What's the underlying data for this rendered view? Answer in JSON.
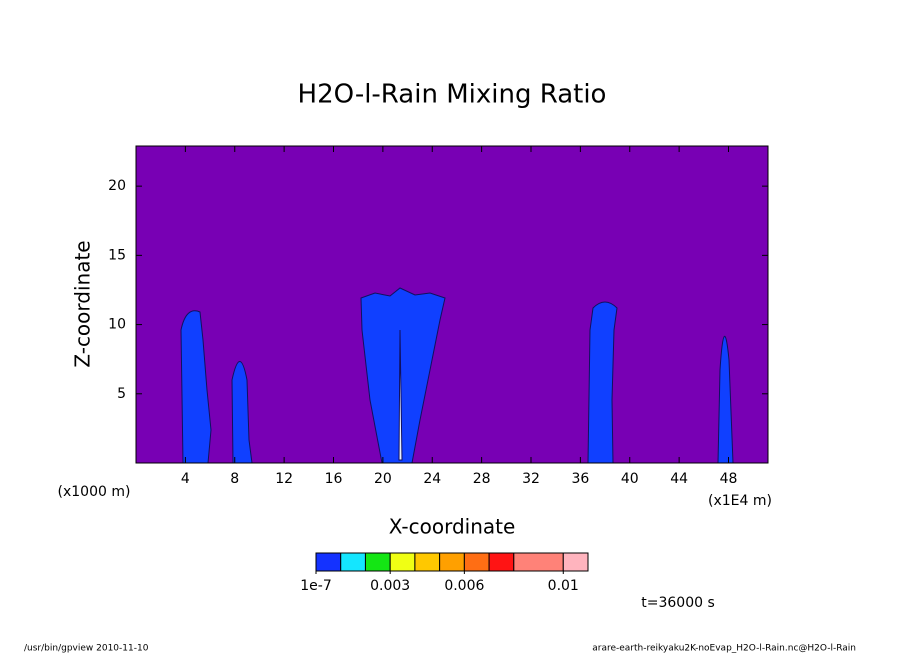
{
  "chart_data": {
    "type": "contour",
    "title": "H2O-l-Rain Mixing Ratio",
    "xlabel": "X-coordinate",
    "ylabel": "Z-coordinate",
    "y_unit": "(x1000 m)",
    "x_unit": "(x1E4 m)",
    "time_label": "t=36000 s",
    "xlim": [
      0,
      51.2
    ],
    "xticks": [
      4,
      8,
      12,
      16,
      20,
      24,
      28,
      32,
      36,
      40,
      44,
      48
    ],
    "ylim": [
      0,
      22.9
    ],
    "yticks": [
      5,
      10,
      15,
      20
    ],
    "background_color": "#7800b4",
    "colorbar": {
      "levels": [
        1e-07,
        0.001,
        0.002,
        0.003,
        0.004,
        0.005,
        0.006,
        0.007,
        0.008,
        0.01,
        0.011
      ],
      "colors": [
        "#1432ff",
        "#14e6ff",
        "#14e614",
        "#f0ff14",
        "#ffc800",
        "#ffa000",
        "#ff6e14",
        "#ff1414",
        "#ff8278",
        "#ffb4be"
      ],
      "ticks": [
        {
          "value": 1e-07,
          "label": "1e-7"
        },
        {
          "value": 0.003,
          "label": "0.003"
        },
        {
          "value": 0.006,
          "label": "0.006"
        },
        {
          "value": 0.01,
          "label": "0.01"
        }
      ]
    },
    "footer_left": "/usr/bin/gpview   2010-11-10",
    "footer_right": "arare-earth-reikyaku2K-noEvap_H2O-l-Rain.nc@H2O-l-Rain"
  }
}
